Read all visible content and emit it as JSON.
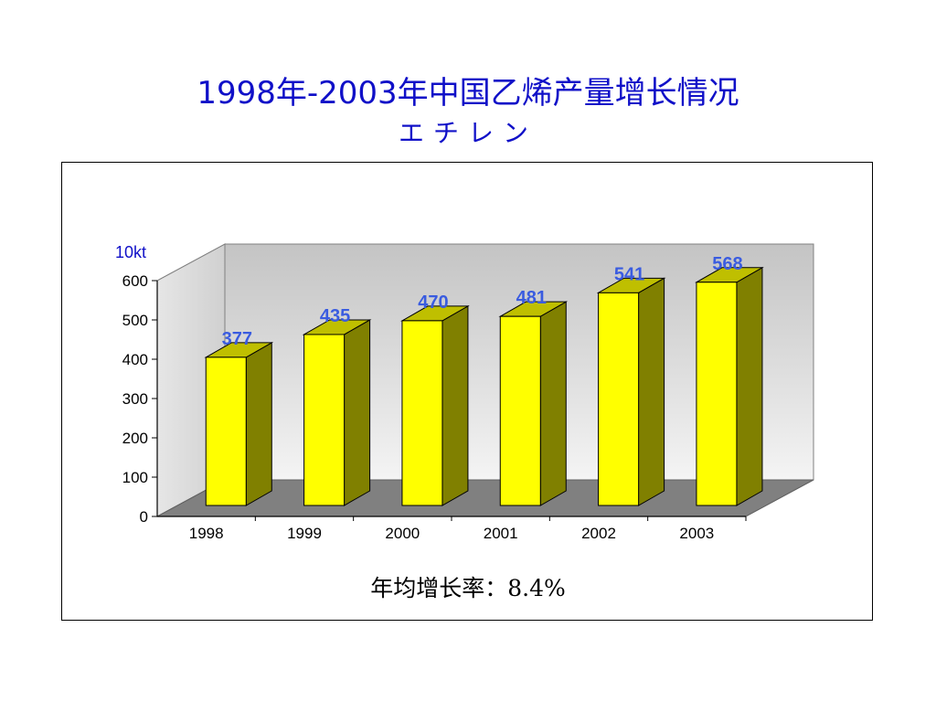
{
  "page": {
    "title": "1998年-2003年中国乙烯产量增长情况",
    "subtitle": "エチレン",
    "note": "年均增长率：8.4%"
  },
  "chart_data": {
    "type": "bar",
    "title": "1998年-2003年中国乙烯产量增长情况",
    "subtitle": "エチレン",
    "unit": "10kt",
    "categories": [
      "1998",
      "1999",
      "2000",
      "2001",
      "2002",
      "2003"
    ],
    "values": [
      377,
      435,
      470,
      481,
      541,
      568
    ],
    "ylim": [
      0,
      600
    ],
    "yticks": [
      0,
      100,
      200,
      300,
      400,
      500,
      600
    ],
    "data_labels": true,
    "three_d": true,
    "grid": false,
    "colors": {
      "bar_front": "#ffff00",
      "bar_side": "#808000",
      "bar_top": "#bfbf00",
      "wall": "#d8d8d8",
      "floor": "#808080",
      "label": "#3a5ce0"
    }
  }
}
